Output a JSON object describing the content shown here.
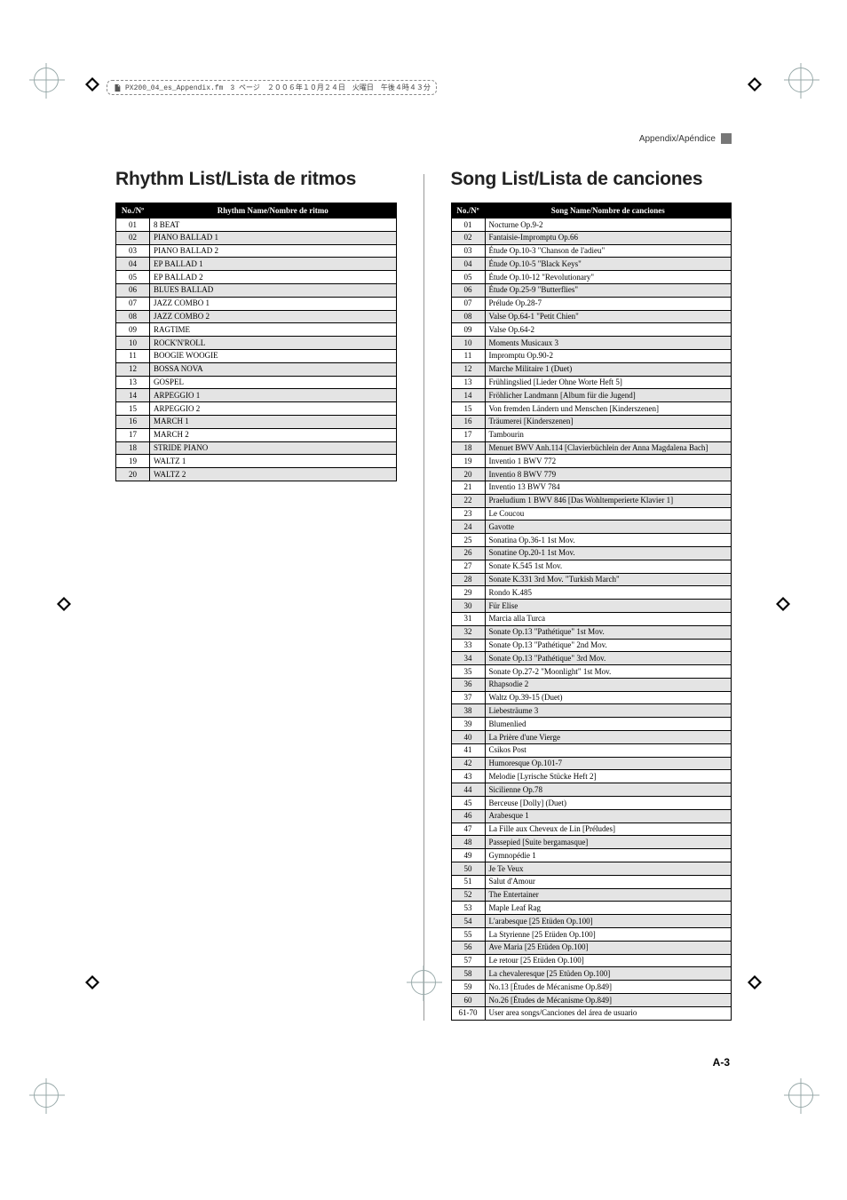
{
  "meta": {
    "doc_line": "PX200_04_es_Appendix.fm　3 ページ　２００６年１０月２４日　火曜日　午後４時４３分"
  },
  "appendix_label": "Appendix/Apéndice",
  "rhythm": {
    "heading": "Rhythm List/Lista de ritmos",
    "head_no": "No./Nº",
    "head_name": "Rhythm Name/Nombre de ritmo",
    "rows": [
      {
        "no": "01",
        "name": "8 BEAT"
      },
      {
        "no": "02",
        "name": "PIANO BALLAD 1"
      },
      {
        "no": "03",
        "name": "PIANO BALLAD 2"
      },
      {
        "no": "04",
        "name": "EP BALLAD 1"
      },
      {
        "no": "05",
        "name": "EP BALLAD 2"
      },
      {
        "no": "06",
        "name": "BLUES BALLAD"
      },
      {
        "no": "07",
        "name": "JAZZ COMBO 1"
      },
      {
        "no": "08",
        "name": "JAZZ COMBO 2"
      },
      {
        "no": "09",
        "name": "RAGTIME"
      },
      {
        "no": "10",
        "name": "ROCK'N'ROLL"
      },
      {
        "no": "11",
        "name": "BOOGIE WOOGIE"
      },
      {
        "no": "12",
        "name": "BOSSA NOVA"
      },
      {
        "no": "13",
        "name": "GOSPEL"
      },
      {
        "no": "14",
        "name": "ARPEGGIO 1"
      },
      {
        "no": "15",
        "name": "ARPEGGIO 2"
      },
      {
        "no": "16",
        "name": "MARCH 1"
      },
      {
        "no": "17",
        "name": "MARCH 2"
      },
      {
        "no": "18",
        "name": "STRIDE PIANO"
      },
      {
        "no": "19",
        "name": "WALTZ 1"
      },
      {
        "no": "20",
        "name": "WALTZ 2"
      }
    ]
  },
  "song": {
    "heading": "Song List/Lista de canciones",
    "head_no": "No./Nº",
    "head_name": "Song Name/Nombre de canciones",
    "rows": [
      {
        "no": "01",
        "name": "Nocturne Op.9-2"
      },
      {
        "no": "02",
        "name": "Fantaisie-Impromptu Op.66"
      },
      {
        "no": "03",
        "name": "Étude Op.10-3 \"Chanson de l'adieu\""
      },
      {
        "no": "04",
        "name": "Étude Op.10-5 \"Black Keys\""
      },
      {
        "no": "05",
        "name": "Étude Op.10-12 \"Revolutionary\""
      },
      {
        "no": "06",
        "name": "Étude Op.25-9 \"Butterflies\""
      },
      {
        "no": "07",
        "name": "Prélude Op.28-7"
      },
      {
        "no": "08",
        "name": "Valse Op.64-1 \"Petit Chien\""
      },
      {
        "no": "09",
        "name": "Valse Op.64-2"
      },
      {
        "no": "10",
        "name": "Moments Musicaux 3"
      },
      {
        "no": "11",
        "name": "Impromptu Op.90-2"
      },
      {
        "no": "12",
        "name": "Marche Militaire 1 (Duet)"
      },
      {
        "no": "13",
        "name": "Frühlingslied [Lieder Ohne Worte Heft 5]"
      },
      {
        "no": "14",
        "name": "Fröhlicher Landmann [Album für die Jugend]"
      },
      {
        "no": "15",
        "name": "Von fremden Ländern und Menschen [Kinderszenen]"
      },
      {
        "no": "16",
        "name": "Träumerei [Kinderszenen]"
      },
      {
        "no": "17",
        "name": "Tambourin"
      },
      {
        "no": "18",
        "name": "Menuet BWV Anh.114 [Clavierbüchlein der Anna Magdalena Bach]"
      },
      {
        "no": "19",
        "name": "Inventio 1 BWV 772"
      },
      {
        "no": "20",
        "name": "Inventio 8 BWV 779"
      },
      {
        "no": "21",
        "name": "Inventio 13 BWV 784"
      },
      {
        "no": "22",
        "name": "Praeludium 1 BWV 846 [Das Wohltemperierte Klavier 1]"
      },
      {
        "no": "23",
        "name": "Le Coucou"
      },
      {
        "no": "24",
        "name": "Gavotte"
      },
      {
        "no": "25",
        "name": "Sonatina Op.36-1 1st Mov."
      },
      {
        "no": "26",
        "name": "Sonatine Op.20-1 1st Mov."
      },
      {
        "no": "27",
        "name": "Sonate K.545 1st Mov."
      },
      {
        "no": "28",
        "name": "Sonate K.331 3rd Mov. \"Turkish March\""
      },
      {
        "no": "29",
        "name": "Rondo K.485"
      },
      {
        "no": "30",
        "name": "Für Elise"
      },
      {
        "no": "31",
        "name": "Marcia alla Turca"
      },
      {
        "no": "32",
        "name": "Sonate Op.13 \"Pathétique\" 1st Mov."
      },
      {
        "no": "33",
        "name": "Sonate Op.13 \"Pathétique\" 2nd Mov."
      },
      {
        "no": "34",
        "name": "Sonate Op.13 \"Pathétique\" 3rd Mov."
      },
      {
        "no": "35",
        "name": "Sonate Op.27-2 \"Moonlight\" 1st Mov."
      },
      {
        "no": "36",
        "name": "Rhapsodie 2"
      },
      {
        "no": "37",
        "name": "Waltz Op.39-15 (Duet)"
      },
      {
        "no": "38",
        "name": "Liebesträume 3"
      },
      {
        "no": "39",
        "name": "Blumenlied"
      },
      {
        "no": "40",
        "name": "La Prière d'une Vierge"
      },
      {
        "no": "41",
        "name": "Csikos Post"
      },
      {
        "no": "42",
        "name": "Humoresque Op.101-7"
      },
      {
        "no": "43",
        "name": "Melodie [Lyrische Stücke Heft 2]"
      },
      {
        "no": "44",
        "name": "Sicilienne Op.78"
      },
      {
        "no": "45",
        "name": "Berceuse [Dolly] (Duet)"
      },
      {
        "no": "46",
        "name": "Arabesque 1"
      },
      {
        "no": "47",
        "name": "La Fille aux Cheveux de Lin [Préludes]"
      },
      {
        "no": "48",
        "name": "Passepied [Suite bergamasque]"
      },
      {
        "no": "49",
        "name": "Gymnopédie 1"
      },
      {
        "no": "50",
        "name": "Je Te Veux"
      },
      {
        "no": "51",
        "name": "Salut d'Amour"
      },
      {
        "no": "52",
        "name": "The Entertainer"
      },
      {
        "no": "53",
        "name": "Maple Leaf Rag"
      },
      {
        "no": "54",
        "name": "L'arabesque [25 Etüden Op.100]"
      },
      {
        "no": "55",
        "name": "La Styrienne [25 Etüden Op.100]"
      },
      {
        "no": "56",
        "name": "Ave Maria [25 Etüden Op.100]"
      },
      {
        "no": "57",
        "name": "Le retour [25 Etüden Op.100]"
      },
      {
        "no": "58",
        "name": "La chevaleresque [25 Etüden Op.100]"
      },
      {
        "no": "59",
        "name": "No.13 [Études de Mécanisme Op.849]"
      },
      {
        "no": "60",
        "name": "No.26 [Études de Mécanisme Op.849]"
      },
      {
        "no": "61-70",
        "name": "User area songs/Canciones del área de usuario"
      }
    ]
  },
  "page_number": "A-3",
  "colors": {
    "shade": "#e4e4e4",
    "header_bg": "#000000",
    "header_fg": "#ffffff"
  }
}
